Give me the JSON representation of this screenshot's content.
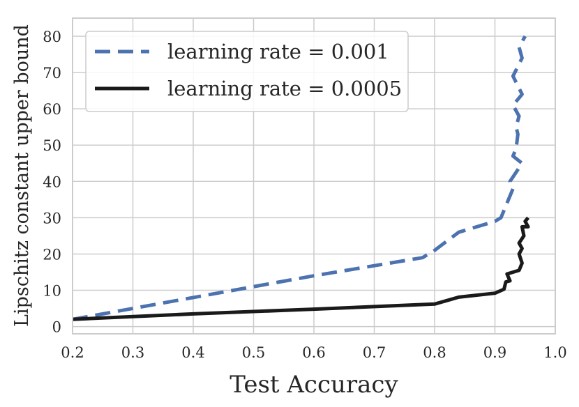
{
  "chart_data": {
    "type": "line",
    "xlabel": "Test Accuracy",
    "ylabel": "Lipschitz constant upper bound",
    "xlim": [
      0.2,
      1.0
    ],
    "ylim": [
      -2,
      85
    ],
    "xticks": [
      0.2,
      0.3,
      0.4,
      0.5,
      0.6,
      0.7,
      0.8,
      0.9,
      1.0
    ],
    "xtick_labels": [
      "0.2",
      "0.3",
      "0.4",
      "0.5",
      "0.6",
      "0.7",
      "0.8",
      "0.9",
      "1.0"
    ],
    "yticks": [
      0,
      10,
      20,
      30,
      40,
      50,
      60,
      70,
      80
    ],
    "ytick_labels": [
      "0",
      "10",
      "20",
      "30",
      "40",
      "50",
      "60",
      "70",
      "80"
    ],
    "grid": true,
    "legend_position": "top-left",
    "series": [
      {
        "name": "learning rate = 0.001",
        "color": "#4c72b0",
        "dash": "dashed",
        "points": [
          [
            0.2,
            2
          ],
          [
            0.4,
            8
          ],
          [
            0.6,
            14
          ],
          [
            0.78,
            19
          ],
          [
            0.8,
            21
          ],
          [
            0.84,
            26
          ],
          [
            0.9,
            29
          ],
          [
            0.91,
            30
          ],
          [
            0.93,
            38
          ],
          [
            0.925,
            40
          ],
          [
            0.945,
            45
          ],
          [
            0.93,
            47
          ],
          [
            0.935,
            49
          ],
          [
            0.938,
            53
          ],
          [
            0.935,
            55
          ],
          [
            0.94,
            58
          ],
          [
            0.93,
            61
          ],
          [
            0.945,
            64
          ],
          [
            0.93,
            69
          ],
          [
            0.945,
            74
          ],
          [
            0.94,
            77
          ],
          [
            0.95,
            80
          ]
        ]
      },
      {
        "name": "learning rate = 0.0005",
        "color": "#1a1a1a",
        "dash": "solid",
        "points": [
          [
            0.2,
            2
          ],
          [
            0.4,
            3.5
          ],
          [
            0.6,
            4.8
          ],
          [
            0.8,
            6.2
          ],
          [
            0.84,
            8.1
          ],
          [
            0.9,
            9.2
          ],
          [
            0.915,
            10.3
          ],
          [
            0.918,
            12.3
          ],
          [
            0.925,
            12.6
          ],
          [
            0.92,
            14.5
          ],
          [
            0.94,
            15.5
          ],
          [
            0.945,
            17.5
          ],
          [
            0.94,
            20
          ],
          [
            0.945,
            21.5
          ],
          [
            0.94,
            23
          ],
          [
            0.948,
            25
          ],
          [
            0.945,
            27.5
          ],
          [
            0.955,
            27.5
          ],
          [
            0.95,
            29
          ],
          [
            0.955,
            30
          ]
        ]
      }
    ]
  }
}
